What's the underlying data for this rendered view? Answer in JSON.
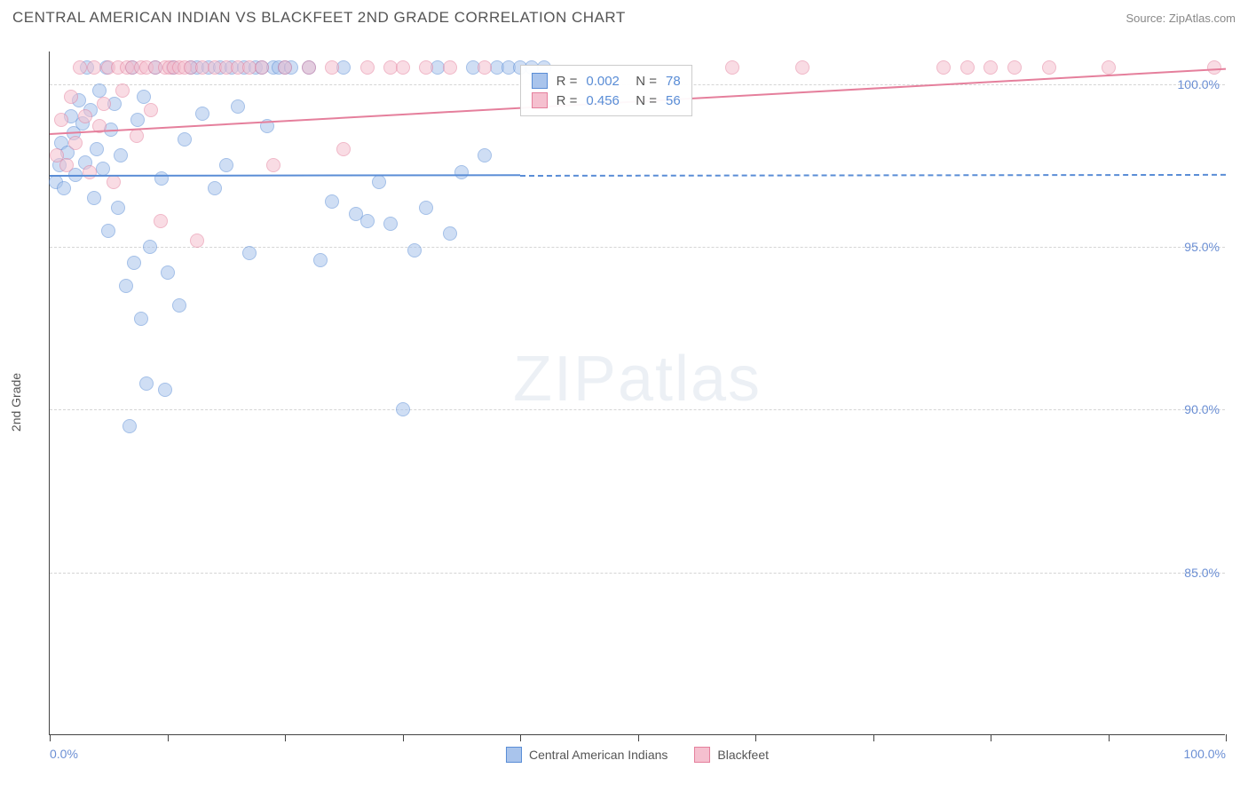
{
  "header": {
    "title": "CENTRAL AMERICAN INDIAN VS BLACKFEET 2ND GRADE CORRELATION CHART",
    "source": "Source: ZipAtlas.com"
  },
  "watermark": {
    "prefix": "ZIP",
    "suffix": "atlas"
  },
  "chart": {
    "type": "scatter",
    "ylabel": "2nd Grade",
    "xlim": [
      0,
      100
    ],
    "ylim": [
      80,
      101
    ],
    "xtick_positions": [
      0,
      10,
      20,
      30,
      40,
      50,
      60,
      70,
      80,
      90,
      100
    ],
    "xtick_labels_shown": {
      "0": "0.0%",
      "100": "100.0%"
    },
    "ytick_positions": [
      85,
      90,
      95,
      100
    ],
    "ytick_labels": {
      "85": "85.0%",
      "90": "90.0%",
      "95": "95.0%",
      "100": "100.0%"
    },
    "background_color": "#ffffff",
    "grid_color": "#d5d5d5",
    "axis_color": "#444444",
    "tick_label_color": "#6b8fd4",
    "point_radius": 8,
    "point_opacity": 0.55,
    "series": [
      {
        "name": "Central American Indians",
        "fill": "#a9c4ec",
        "stroke": "#5a8dd6",
        "trend": {
          "color": "#5a8dd6",
          "y_start": 97.2,
          "y_end": 97.25,
          "dash_after_x": 40
        },
        "stats": {
          "R": "0.002",
          "N": "78"
        },
        "points": [
          [
            0.5,
            97.0
          ],
          [
            0.8,
            97.5
          ],
          [
            1.0,
            98.2
          ],
          [
            1.2,
            96.8
          ],
          [
            1.5,
            97.9
          ],
          [
            1.8,
            99.0
          ],
          [
            2.0,
            98.5
          ],
          [
            2.2,
            97.2
          ],
          [
            2.5,
            99.5
          ],
          [
            2.8,
            98.8
          ],
          [
            3.0,
            97.6
          ],
          [
            3.2,
            100.5
          ],
          [
            3.5,
            99.2
          ],
          [
            3.8,
            96.5
          ],
          [
            4.0,
            98.0
          ],
          [
            4.2,
            99.8
          ],
          [
            4.5,
            97.4
          ],
          [
            4.8,
            100.5
          ],
          [
            5.0,
            95.5
          ],
          [
            5.2,
            98.6
          ],
          [
            5.5,
            99.4
          ],
          [
            5.8,
            96.2
          ],
          [
            6.0,
            97.8
          ],
          [
            6.5,
            93.8
          ],
          [
            7.0,
            100.5
          ],
          [
            7.2,
            94.5
          ],
          [
            7.5,
            98.9
          ],
          [
            8.0,
            99.6
          ],
          [
            8.5,
            95.0
          ],
          [
            9.0,
            100.5
          ],
          [
            9.5,
            97.1
          ],
          [
            10.0,
            94.2
          ],
          [
            10.5,
            100.5
          ],
          [
            11.0,
            93.2
          ],
          [
            11.5,
            98.3
          ],
          [
            12.0,
            100.5
          ],
          [
            12.5,
            100.5
          ],
          [
            13.0,
            99.1
          ],
          [
            13.5,
            100.5
          ],
          [
            14.0,
            96.8
          ],
          [
            14.5,
            100.5
          ],
          [
            15.0,
            97.5
          ],
          [
            15.5,
            100.5
          ],
          [
            16.0,
            99.3
          ],
          [
            16.5,
            100.5
          ],
          [
            17.0,
            94.8
          ],
          [
            17.5,
            100.5
          ],
          [
            18.0,
            100.5
          ],
          [
            18.5,
            98.7
          ],
          [
            19.0,
            100.5
          ],
          [
            19.5,
            100.5
          ],
          [
            20.0,
            100.5
          ],
          [
            20.5,
            100.5
          ],
          [
            6.8,
            89.5
          ],
          [
            8.2,
            90.8
          ],
          [
            9.8,
            90.6
          ],
          [
            7.8,
            92.8
          ],
          [
            22.0,
            100.5
          ],
          [
            23.0,
            94.6
          ],
          [
            24.0,
            96.4
          ],
          [
            25.0,
            100.5
          ],
          [
            26.0,
            96.0
          ],
          [
            27.0,
            95.8
          ],
          [
            28.0,
            97.0
          ],
          [
            29.0,
            95.7
          ],
          [
            30.0,
            90.0
          ],
          [
            31.0,
            94.9
          ],
          [
            32.0,
            96.2
          ],
          [
            33.0,
            100.5
          ],
          [
            34.0,
            95.4
          ],
          [
            35.0,
            97.3
          ],
          [
            36.0,
            100.5
          ],
          [
            37.0,
            97.8
          ],
          [
            38.0,
            100.5
          ],
          [
            39.0,
            100.5
          ],
          [
            40.0,
            100.5
          ],
          [
            41.0,
            100.5
          ],
          [
            42.0,
            100.5
          ]
        ]
      },
      {
        "name": "Blackfeet",
        "fill": "#f5c0cf",
        "stroke": "#e57f9c",
        "trend": {
          "color": "#e57f9c",
          "y_start": 98.5,
          "y_end": 100.5,
          "dash_after_x": 100
        },
        "stats": {
          "R": "0.456",
          "N": "56"
        },
        "points": [
          [
            0.6,
            97.8
          ],
          [
            1.0,
            98.9
          ],
          [
            1.4,
            97.5
          ],
          [
            1.8,
            99.6
          ],
          [
            2.2,
            98.2
          ],
          [
            2.6,
            100.5
          ],
          [
            3.0,
            99.0
          ],
          [
            3.4,
            97.3
          ],
          [
            3.8,
            100.5
          ],
          [
            4.2,
            98.7
          ],
          [
            4.6,
            99.4
          ],
          [
            5.0,
            100.5
          ],
          [
            5.4,
            97.0
          ],
          [
            5.8,
            100.5
          ],
          [
            6.2,
            99.8
          ],
          [
            6.6,
            100.5
          ],
          [
            7.0,
            100.5
          ],
          [
            7.4,
            98.4
          ],
          [
            7.8,
            100.5
          ],
          [
            8.2,
            100.5
          ],
          [
            8.6,
            99.2
          ],
          [
            9.0,
            100.5
          ],
          [
            9.4,
            95.8
          ],
          [
            9.8,
            100.5
          ],
          [
            10.2,
            100.5
          ],
          [
            10.6,
            100.5
          ],
          [
            11.0,
            100.5
          ],
          [
            11.5,
            100.5
          ],
          [
            12.0,
            100.5
          ],
          [
            12.5,
            95.2
          ],
          [
            13.0,
            100.5
          ],
          [
            14.0,
            100.5
          ],
          [
            15.0,
            100.5
          ],
          [
            16.0,
            100.5
          ],
          [
            17.0,
            100.5
          ],
          [
            18.0,
            100.5
          ],
          [
            19.0,
            97.5
          ],
          [
            20.0,
            100.5
          ],
          [
            22.0,
            100.5
          ],
          [
            24.0,
            100.5
          ],
          [
            25.0,
            98.0
          ],
          [
            27.0,
            100.5
          ],
          [
            29.0,
            100.5
          ],
          [
            30.0,
            100.5
          ],
          [
            32.0,
            100.5
          ],
          [
            34.0,
            100.5
          ],
          [
            37.0,
            100.5
          ],
          [
            58.0,
            100.5
          ],
          [
            64.0,
            100.5
          ],
          [
            76.0,
            100.5
          ],
          [
            78.0,
            100.5
          ],
          [
            80.0,
            100.5
          ],
          [
            82.0,
            100.5
          ],
          [
            85.0,
            100.5
          ],
          [
            90.0,
            100.5
          ],
          [
            99.0,
            100.5
          ]
        ]
      }
    ],
    "stats_box": {
      "left_pct": 40,
      "top_pct": 2
    },
    "bottom_legend": [
      {
        "label": "Central American Indians",
        "fill": "#a9c4ec",
        "stroke": "#5a8dd6"
      },
      {
        "label": "Blackfeet",
        "fill": "#f5c0cf",
        "stroke": "#e57f9c"
      }
    ]
  }
}
